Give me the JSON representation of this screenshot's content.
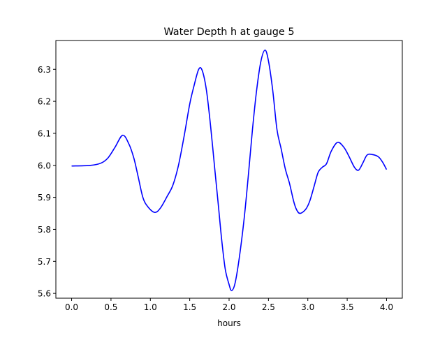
{
  "chart_data": {
    "type": "line",
    "title": "Water Depth h at gauge 5",
    "xlabel": "hours",
    "ylabel": "",
    "xlim": [
      -0.2,
      4.2
    ],
    "ylim": [
      5.585,
      6.39
    ],
    "xticks": [
      0.0,
      0.5,
      1.0,
      1.5,
      2.0,
      2.5,
      3.0,
      3.5,
      4.0
    ],
    "xtick_labels": [
      "0.0",
      "0.5",
      "1.0",
      "1.5",
      "2.0",
      "2.5",
      "3.0",
      "3.5",
      "4.0"
    ],
    "yticks": [
      5.6,
      5.7,
      5.8,
      5.9,
      6.0,
      6.1,
      6.2,
      6.3
    ],
    "ytick_labels": [
      "5.6",
      "5.7",
      "5.8",
      "5.9",
      "6.0",
      "6.1",
      "6.2",
      "6.3"
    ],
    "grid": false,
    "series": [
      {
        "name": "h",
        "color": "#0000ff",
        "x": [
          0,
          0.239,
          0.373,
          0.461,
          0.55,
          0.648,
          0.727,
          0.79,
          0.843,
          0.905,
          0.967,
          1.055,
          1.126,
          1.215,
          1.286,
          1.357,
          1.428,
          1.499,
          1.552,
          1.614,
          1.659,
          1.712,
          1.765,
          1.818,
          1.863,
          1.907,
          1.951,
          1.996,
          2.031,
          2.075,
          2.129,
          2.191,
          2.244,
          2.297,
          2.35,
          2.404,
          2.457,
          2.501,
          2.554,
          2.608,
          2.661,
          2.714,
          2.767,
          2.82,
          2.856,
          2.9,
          2.971,
          3.024,
          3.078,
          3.131,
          3.184,
          3.237,
          3.299,
          3.379,
          3.459,
          3.521,
          3.592,
          3.645,
          3.698,
          3.752,
          3.814,
          3.894,
          3.947,
          4.0
        ],
        "y": [
          5.998,
          6.0,
          6.007,
          6.023,
          6.056,
          6.094,
          6.067,
          6.023,
          5.967,
          5.9,
          5.871,
          5.853,
          5.866,
          5.904,
          5.938,
          6.0,
          6.09,
          6.19,
          6.246,
          6.3,
          6.296,
          6.235,
          6.123,
          5.989,
          5.877,
          5.765,
          5.676,
          5.631,
          5.609,
          5.631,
          5.71,
          5.833,
          5.967,
          6.112,
          6.235,
          6.325,
          6.36,
          6.325,
          6.235,
          6.112,
          6.052,
          5.989,
          5.944,
          5.888,
          5.862,
          5.85,
          5.862,
          5.888,
          5.933,
          5.978,
          5.994,
          6.005,
          6.045,
          6.072,
          6.056,
          6.029,
          5.994,
          5.985,
          6.007,
          6.032,
          6.034,
          6.027,
          6.011,
          5.987
        ]
      }
    ]
  }
}
